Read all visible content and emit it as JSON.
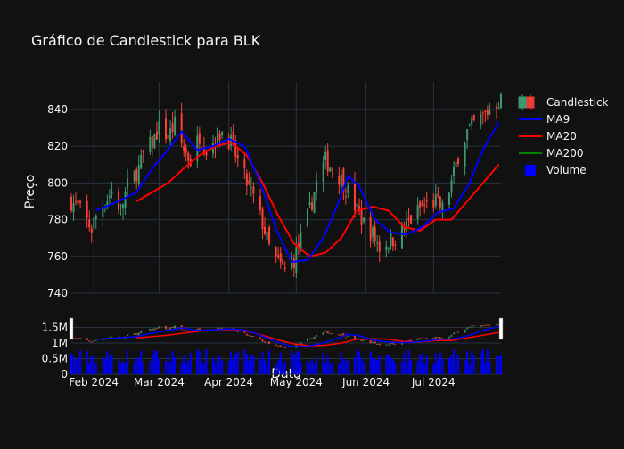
{
  "chart_data": {
    "type": "candlestick",
    "title": "Gráfico de Candlestick para BLK",
    "ylabel": "Preço",
    "xlabel": "Data",
    "ylim": [
      740,
      855
    ],
    "yticks": [
      740,
      760,
      780,
      800,
      820,
      840
    ],
    "volume_ylim": [
      0,
      1800000
    ],
    "volume_ticks": [
      {
        "value": 0,
        "label": "0"
      },
      {
        "value": 500000,
        "label": "0.5M"
      },
      {
        "value": 1000000,
        "label": "1M"
      },
      {
        "value": 1500000,
        "label": "1.5M"
      }
    ],
    "x_range": [
      "2024-01-22",
      "2024-07-31"
    ],
    "xticks": [
      {
        "date": "2024-02-01",
        "label": "Feb 2024"
      },
      {
        "date": "2024-03-01",
        "label": "Mar 2024"
      },
      {
        "date": "2024-04-01",
        "label": "Apr 2024"
      },
      {
        "date": "2024-05-01",
        "label": "May 2024"
      },
      {
        "date": "2024-06-01",
        "label": "Jun 2024"
      },
      {
        "date": "2024-07-01",
        "label": "Jul 2024"
      }
    ],
    "legend_position": "top-right",
    "colors": {
      "increasing": "#3d9970",
      "decreasing": "#ff4136",
      "ma9": "#0000ff",
      "ma20": "#ff0000",
      "ma200": "#008000",
      "volume": "#0000ff"
    },
    "legend": [
      {
        "name": "Candlestick",
        "kind": "candle"
      },
      {
        "name": "MA9",
        "kind": "line",
        "color": "#0000ff"
      },
      {
        "name": "MA20",
        "kind": "line",
        "color": "#ff0000"
      },
      {
        "name": "MA200",
        "kind": "line",
        "color": "#008000"
      },
      {
        "name": "Volume",
        "kind": "bar",
        "color": "#0000ff"
      }
    ],
    "close_path": [
      [
        "2024-01-22",
        790
      ],
      [
        "2024-01-26",
        785
      ],
      [
        "2024-01-31",
        775
      ],
      [
        "2024-02-02",
        782
      ],
      [
        "2024-02-06",
        790
      ],
      [
        "2024-02-09",
        795
      ],
      [
        "2024-02-13",
        785
      ],
      [
        "2024-02-16",
        798
      ],
      [
        "2024-02-21",
        808
      ],
      [
        "2024-02-23",
        815
      ],
      [
        "2024-02-27",
        822
      ],
      [
        "2024-03-01",
        830
      ],
      [
        "2024-03-05",
        825
      ],
      [
        "2024-03-08",
        832
      ],
      [
        "2024-03-12",
        818
      ],
      [
        "2024-03-15",
        812
      ],
      [
        "2024-03-19",
        826
      ],
      [
        "2024-03-22",
        818
      ],
      [
        "2024-03-26",
        824
      ],
      [
        "2024-03-29",
        828
      ],
      [
        "2024-04-02",
        822
      ],
      [
        "2024-04-05",
        812
      ],
      [
        "2024-04-09",
        800
      ],
      [
        "2024-04-12",
        792
      ],
      [
        "2024-04-16",
        778
      ],
      [
        "2024-04-19",
        765
      ],
      [
        "2024-04-23",
        756
      ],
      [
        "2024-04-26",
        752
      ],
      [
        "2024-04-30",
        758
      ],
      [
        "2024-05-03",
        770
      ],
      [
        "2024-05-07",
        785
      ],
      [
        "2024-05-10",
        800
      ],
      [
        "2024-05-14",
        812
      ],
      [
        "2024-05-17",
        808
      ],
      [
        "2024-05-21",
        802
      ],
      [
        "2024-05-24",
        795
      ],
      [
        "2024-05-28",
        785
      ],
      [
        "2024-05-31",
        778
      ],
      [
        "2024-06-04",
        772
      ],
      [
        "2024-06-07",
        765
      ],
      [
        "2024-06-11",
        768
      ],
      [
        "2024-06-14",
        770
      ],
      [
        "2024-06-18",
        775
      ],
      [
        "2024-06-21",
        780
      ],
      [
        "2024-06-25",
        786
      ],
      [
        "2024-06-28",
        788
      ],
      [
        "2024-07-02",
        790
      ],
      [
        "2024-07-05",
        786
      ],
      [
        "2024-07-09",
        800
      ],
      [
        "2024-07-12",
        815
      ],
      [
        "2024-07-16",
        828
      ],
      [
        "2024-07-19",
        832
      ],
      [
        "2024-07-23",
        836
      ],
      [
        "2024-07-26",
        840
      ],
      [
        "2024-07-30",
        845
      ]
    ],
    "ma9": [
      [
        "2024-02-02",
        785
      ],
      [
        "2024-02-12",
        790
      ],
      [
        "2024-02-20",
        795
      ],
      [
        "2024-02-27",
        808
      ],
      [
        "2024-03-05",
        818
      ],
      [
        "2024-03-11",
        828
      ],
      [
        "2024-03-18",
        818
      ],
      [
        "2024-03-25",
        820
      ],
      [
        "2024-04-01",
        824
      ],
      [
        "2024-04-08",
        820
      ],
      [
        "2024-04-15",
        800
      ],
      [
        "2024-04-22",
        775
      ],
      [
        "2024-04-29",
        757
      ],
      [
        "2024-05-06",
        758
      ],
      [
        "2024-05-13",
        770
      ],
      [
        "2024-05-20",
        790
      ],
      [
        "2024-05-24",
        804
      ],
      [
        "2024-05-29",
        798
      ],
      [
        "2024-06-05",
        780
      ],
      [
        "2024-06-12",
        773
      ],
      [
        "2024-06-19",
        772
      ],
      [
        "2024-06-26",
        776
      ],
      [
        "2024-07-03",
        784
      ],
      [
        "2024-07-10",
        786
      ],
      [
        "2024-07-17",
        800
      ],
      [
        "2024-07-23",
        818
      ],
      [
        "2024-07-30",
        833
      ]
    ],
    "ma20": [
      [
        "2024-02-20",
        790
      ],
      [
        "2024-02-27",
        795
      ],
      [
        "2024-03-05",
        800
      ],
      [
        "2024-03-12",
        808
      ],
      [
        "2024-03-19",
        815
      ],
      [
        "2024-03-26",
        820
      ],
      [
        "2024-04-02",
        822
      ],
      [
        "2024-04-09",
        815
      ],
      [
        "2024-04-16",
        800
      ],
      [
        "2024-04-23",
        782
      ],
      [
        "2024-04-30",
        767
      ],
      [
        "2024-05-07",
        760
      ],
      [
        "2024-05-14",
        762
      ],
      [
        "2024-05-21",
        770
      ],
      [
        "2024-05-28",
        785
      ],
      [
        "2024-06-04",
        787
      ],
      [
        "2024-06-11",
        785
      ],
      [
        "2024-06-18",
        776
      ],
      [
        "2024-06-25",
        774
      ],
      [
        "2024-07-02",
        780
      ],
      [
        "2024-07-09",
        780
      ],
      [
        "2024-07-16",
        790
      ],
      [
        "2024-07-23",
        800
      ],
      [
        "2024-07-30",
        810
      ]
    ]
  }
}
